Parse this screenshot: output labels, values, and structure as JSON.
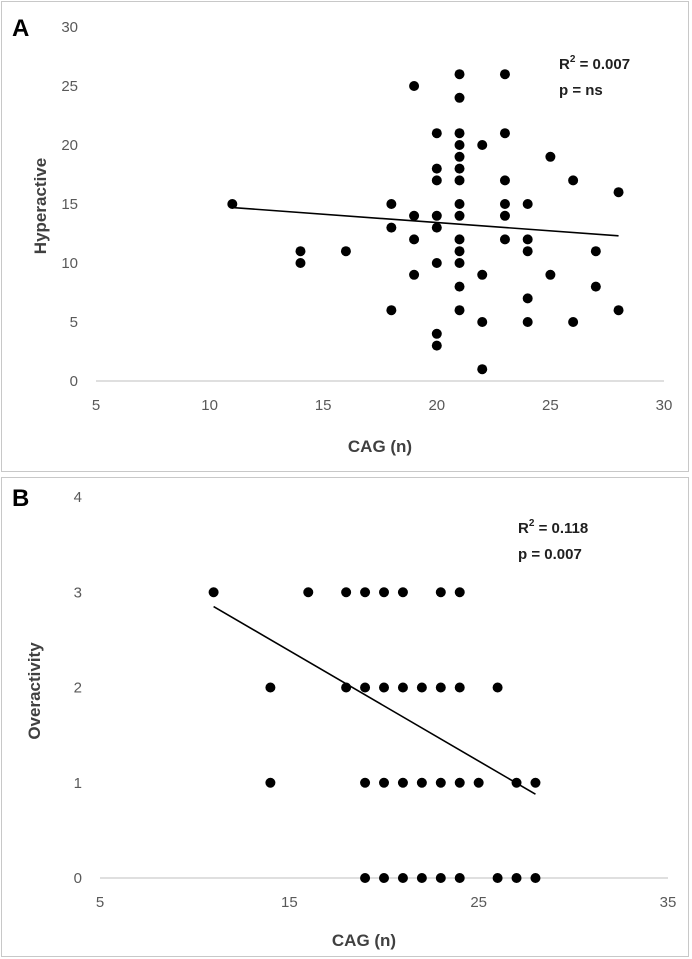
{
  "colors": {
    "point": "#000000",
    "trendline": "#000000",
    "text": "#404040"
  },
  "chart_data": [
    {
      "type": "scatter",
      "panel_label": "A",
      "xlabel": "CAG (n)",
      "ylabel": "Hyperactive",
      "xlim": [
        5,
        30
      ],
      "ylim": [
        0,
        30
      ],
      "xticks": [
        5,
        10,
        15,
        20,
        25,
        30
      ],
      "yticks": [
        0,
        5,
        10,
        15,
        20,
        25,
        30
      ],
      "grid": false,
      "stats": {
        "r2_label": "R",
        "r2_sup": "2",
        "r2_value": " = 0.007",
        "p_text": "p = ns"
      },
      "trendline": {
        "x": [
          11,
          28
        ],
        "y": [
          14.7,
          12.3
        ]
      },
      "points": [
        [
          11,
          15
        ],
        [
          14,
          11
        ],
        [
          14,
          10
        ],
        [
          16,
          11
        ],
        [
          18,
          15
        ],
        [
          18,
          13
        ],
        [
          18,
          6
        ],
        [
          19,
          25
        ],
        [
          19,
          14
        ],
        [
          19,
          12
        ],
        [
          19,
          9
        ],
        [
          20,
          21
        ],
        [
          20,
          18
        ],
        [
          20,
          17
        ],
        [
          20,
          14
        ],
        [
          20,
          13
        ],
        [
          20,
          10
        ],
        [
          20,
          4
        ],
        [
          20,
          3
        ],
        [
          21,
          26
        ],
        [
          21,
          24
        ],
        [
          21,
          21
        ],
        [
          21,
          20
        ],
        [
          21,
          19
        ],
        [
          21,
          18
        ],
        [
          21,
          17
        ],
        [
          21,
          15
        ],
        [
          21,
          14
        ],
        [
          21,
          12
        ],
        [
          21,
          11
        ],
        [
          21,
          10
        ],
        [
          21,
          8
        ],
        [
          21,
          6
        ],
        [
          22,
          20
        ],
        [
          22,
          9
        ],
        [
          22,
          5
        ],
        [
          22,
          1
        ],
        [
          23,
          26
        ],
        [
          23,
          21
        ],
        [
          23,
          17
        ],
        [
          23,
          15
        ],
        [
          23,
          14
        ],
        [
          23,
          12
        ],
        [
          24,
          15
        ],
        [
          24,
          12
        ],
        [
          24,
          11
        ],
        [
          24,
          7
        ],
        [
          24,
          5
        ],
        [
          25,
          19
        ],
        [
          25,
          9
        ],
        [
          26,
          17
        ],
        [
          26,
          5
        ],
        [
          27,
          11
        ],
        [
          27,
          8
        ],
        [
          28,
          16
        ],
        [
          28,
          6
        ]
      ]
    },
    {
      "type": "scatter",
      "panel_label": "B",
      "xlabel": "CAG (n)",
      "ylabel": "Overactivity",
      "xlim": [
        5,
        35
      ],
      "ylim": [
        0,
        4
      ],
      "xticks": [
        5,
        15,
        25,
        35
      ],
      "yticks": [
        0,
        1,
        2,
        3,
        4
      ],
      "grid": false,
      "stats": {
        "r2_label": "R",
        "r2_sup": "2",
        "r2_value": " = 0.118",
        "p_text": "p = 0.007"
      },
      "trendline": {
        "x": [
          11,
          28
        ],
        "y": [
          2.85,
          0.88
        ]
      },
      "points": [
        [
          11,
          3
        ],
        [
          16,
          3
        ],
        [
          18,
          3
        ],
        [
          19,
          3
        ],
        [
          20,
          3
        ],
        [
          21,
          3
        ],
        [
          23,
          3
        ],
        [
          24,
          3
        ],
        [
          14,
          2
        ],
        [
          18,
          2
        ],
        [
          19,
          2
        ],
        [
          20,
          2
        ],
        [
          21,
          2
        ],
        [
          22,
          2
        ],
        [
          23,
          2
        ],
        [
          24,
          2
        ],
        [
          26,
          2
        ],
        [
          14,
          1
        ],
        [
          19,
          1
        ],
        [
          20,
          1
        ],
        [
          21,
          1
        ],
        [
          22,
          1
        ],
        [
          23,
          1
        ],
        [
          24,
          1
        ],
        [
          25,
          1
        ],
        [
          27,
          1
        ],
        [
          28,
          1
        ],
        [
          19,
          0
        ],
        [
          20,
          0
        ],
        [
          21,
          0
        ],
        [
          22,
          0
        ],
        [
          23,
          0
        ],
        [
          24,
          0
        ],
        [
          26,
          0
        ],
        [
          27,
          0
        ],
        [
          28,
          0
        ]
      ]
    }
  ]
}
